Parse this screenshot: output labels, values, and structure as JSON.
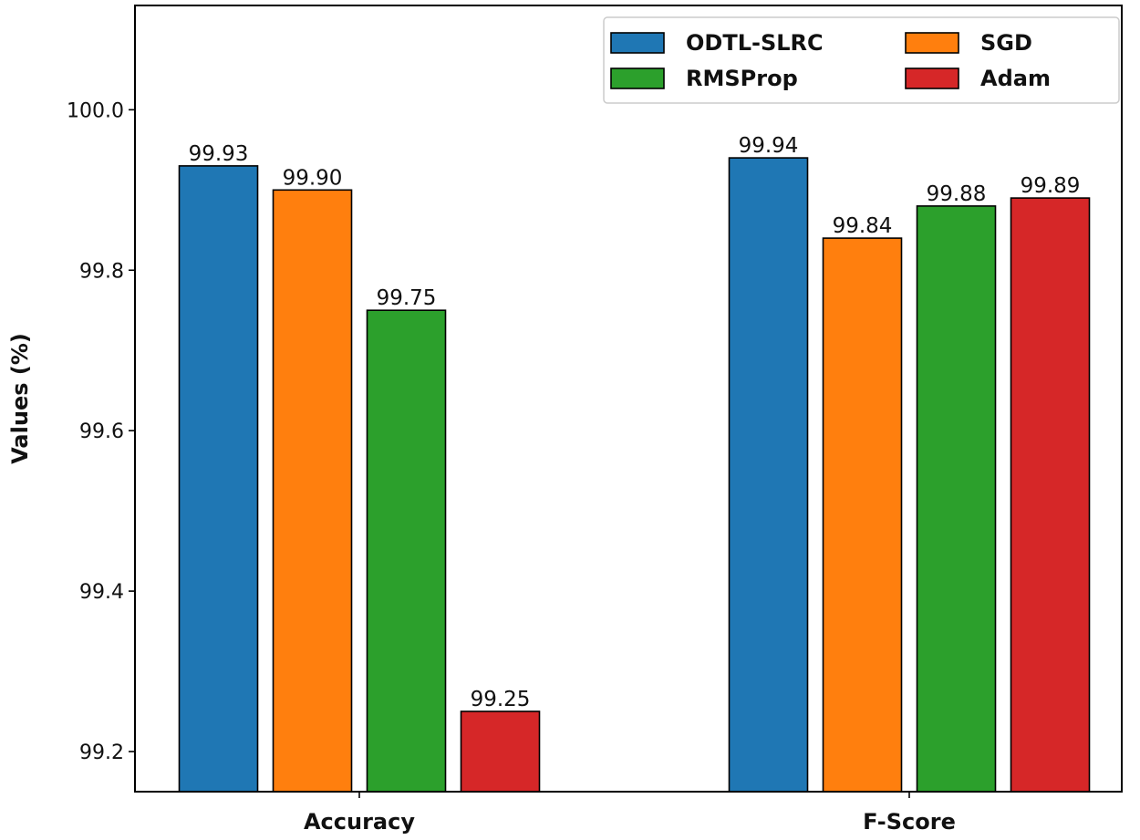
{
  "chart_data": {
    "type": "bar",
    "title": "",
    "xlabel": "",
    "ylabel": "Values (%)",
    "categories": [
      "Accuracy",
      "F-Score"
    ],
    "series": [
      {
        "name": "ODTL-SLRC",
        "color": "#1f77b4",
        "values": [
          99.93,
          99.94
        ],
        "labels": [
          "99.93",
          "99.94"
        ]
      },
      {
        "name": "SGD",
        "color": "#ff7f0e",
        "values": [
          99.9,
          99.84
        ],
        "labels": [
          "99.90",
          "99.84"
        ]
      },
      {
        "name": "RMSProp",
        "color": "#2ca02c",
        "values": [
          99.75,
          99.88
        ],
        "labels": [
          "99.75",
          "99.88"
        ]
      },
      {
        "name": "Adam",
        "color": "#d62728",
        "values": [
          99.25,
          99.89
        ],
        "labels": [
          "99.25",
          "99.89"
        ]
      }
    ],
    "ylim": [
      99.15,
      100.13
    ],
    "yticks": [
      99.2,
      99.4,
      99.6,
      99.8,
      100.0
    ],
    "ytick_labels": [
      "99.2",
      "99.4",
      "99.6",
      "99.8",
      "100.0"
    ],
    "legend_position": "top-right",
    "grid": false
  }
}
